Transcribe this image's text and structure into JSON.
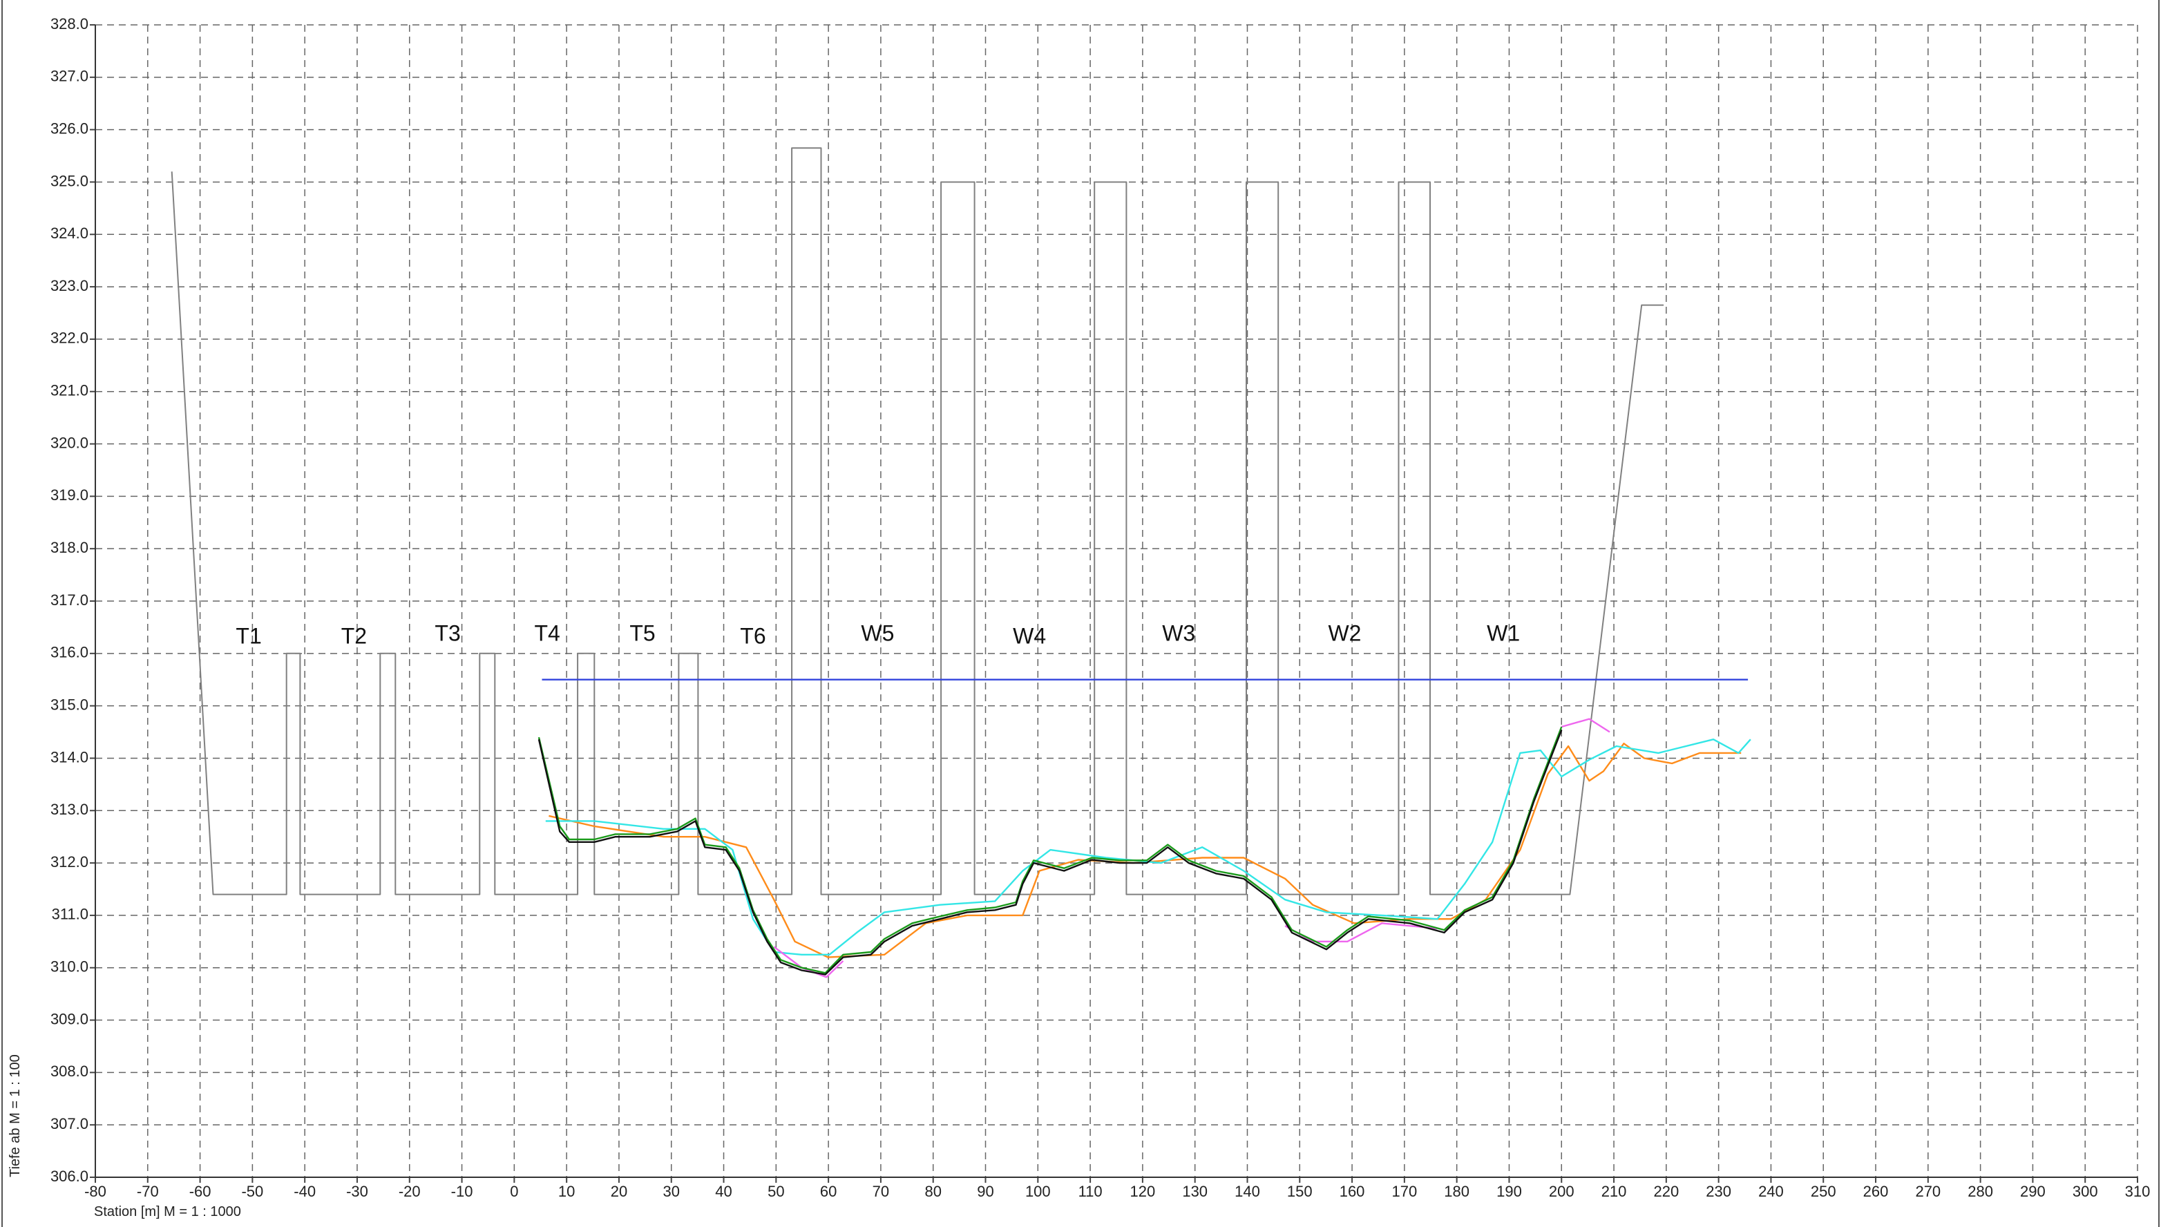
{
  "chart_data": {
    "type": "line",
    "x_label": "Station [m]  M = 1 :  1000",
    "y_label": "Tiefe ab   M = 1 : 100",
    "xlim": [
      -80,
      310
    ],
    "ylim": [
      306,
      328
    ],
    "xticks": [
      -80,
      -70,
      -60,
      -50,
      -40,
      -30,
      -20,
      -10,
      0,
      10,
      20,
      30,
      40,
      50,
      60,
      70,
      80,
      90,
      100,
      110,
      120,
      130,
      140,
      150,
      160,
      170,
      180,
      190,
      200,
      210,
      220,
      230,
      240,
      250,
      260,
      270,
      280,
      290,
      300,
      310
    ],
    "yticks": [
      {
        "value": 306,
        "label": "306.0"
      },
      {
        "value": 307,
        "label": "307.0"
      },
      {
        "value": 308,
        "label": "308.0"
      },
      {
        "value": 309,
        "label": "309.0"
      },
      {
        "value": 310,
        "label": "310.0"
      },
      {
        "value": 311,
        "label": "311.0"
      },
      {
        "value": 312,
        "label": "312.0"
      },
      {
        "value": 313,
        "label": "313.0"
      },
      {
        "value": 314,
        "label": "314.0"
      },
      {
        "value": 315,
        "label": "315.0"
      },
      {
        "value": 316,
        "label": "316.0"
      },
      {
        "value": 317,
        "label": "317.0"
      },
      {
        "value": 318,
        "label": "318.0"
      },
      {
        "value": 319,
        "label": "319.0"
      },
      {
        "value": 320,
        "label": "320.0"
      },
      {
        "value": 321,
        "label": "321.0"
      },
      {
        "value": 322,
        "label": "322.0"
      },
      {
        "value": 323,
        "label": "323.0"
      },
      {
        "value": 324,
        "label": "324.0"
      },
      {
        "value": 325,
        "label": "325.0"
      },
      {
        "value": 326,
        "label": "326.0"
      },
      {
        "value": 327,
        "label": "327.0"
      },
      {
        "value": 328,
        "label": "328.0"
      }
    ],
    "grid": true,
    "series": [
      {
        "color": "#808080",
        "x": [
          -65.4,
          -57.5,
          -43.5,
          -43.5,
          -40.9,
          -40.9,
          -25.6,
          -25.6,
          -22.7,
          -22.7,
          -6.6,
          -6.6,
          -3.7,
          -3.7,
          12.1,
          12.1,
          15.3,
          15.3,
          31.4,
          31.4,
          35.1,
          35.1,
          53,
          53,
          58.6,
          58.6,
          81.5,
          81.5,
          87.9,
          87.9,
          110.8,
          110.8,
          116.9,
          116.9,
          139.8,
          139.8,
          145.9,
          145.9,
          168.9,
          168.9,
          174.9,
          174.9,
          201.6,
          215.3,
          219.5
        ],
        "values": [
          325.2,
          311.4,
          311.4,
          316,
          316,
          311.4,
          311.4,
          316,
          316,
          311.4,
          311.4,
          316,
          316,
          311.4,
          311.4,
          316,
          316,
          311.4,
          311.4,
          316,
          316,
          311.4,
          311.4,
          325.65,
          325.65,
          311.4,
          311.4,
          325,
          325,
          311.4,
          311.4,
          325,
          325,
          311.4,
          311.4,
          325,
          325,
          311.4,
          311.4,
          325,
          325,
          311.4,
          311.4,
          322.65,
          322.65
        ]
      },
      {
        "color": "#3344dd",
        "x": [
          5.3,
          235.6
        ],
        "values": [
          315.5,
          315.5
        ]
      },
      {
        "color": "#ff8c1a",
        "x": [
          6.6,
          15.3,
          28.5,
          36.4,
          44.3,
          49.6,
          53.6,
          59.9,
          70.7,
          78.6,
          86.5,
          97.1,
          100.3,
          107.7,
          118.2,
          131.4,
          139.3,
          147.2,
          152.5,
          160.4,
          171,
          178.9,
          185.5,
          192.1,
          197.4,
          201.3,
          205.3,
          208,
          211.9,
          215.8,
          221.1,
          226.4,
          234.3
        ],
        "values": [
          312.9,
          312.7,
          312.5,
          312.5,
          312.3,
          311.3,
          310.5,
          310.2,
          310.25,
          310.85,
          311,
          311,
          311.85,
          312.06,
          312,
          312.1,
          312.1,
          311.7,
          311.2,
          310.85,
          310.93,
          310.93,
          311.3,
          312.25,
          313.7,
          314.23,
          313.57,
          313.75,
          314.28,
          314,
          313.9,
          314.1,
          314.1
        ]
      },
      {
        "color": "#33e6e6",
        "x": [
          6,
          15.3,
          28.5,
          36.4,
          41.7,
          45.6,
          49.6,
          54.9,
          60.2,
          65.4,
          70.7,
          81.3,
          91.8,
          97.1,
          102.4,
          113,
          123.5,
          131.4,
          139.3,
          147.2,
          155.1,
          165.7,
          176.3,
          181.5,
          186.8,
          192.1,
          196,
          200,
          205.3,
          210.5,
          218.5,
          229,
          233.8,
          236.1
        ],
        "values": [
          312.8,
          312.8,
          312.65,
          312.65,
          312.25,
          310.93,
          310.3,
          310.25,
          310.25,
          310.67,
          311.06,
          311.2,
          311.27,
          311.85,
          312.25,
          312.1,
          312,
          312.3,
          311.85,
          311.3,
          311.06,
          311,
          310.93,
          311.6,
          312.4,
          314.1,
          314.15,
          313.65,
          313.97,
          314.23,
          314.1,
          314.36,
          314.1,
          314.36
        ]
      },
      {
        "color": "#ee66ee",
        "x": [
          49.6,
          54.9,
          59.6,
          62.8,
          null,
          147.2,
          152.5,
          159.1,
          165.7,
          176.3,
          null,
          200,
          205.3,
          209.2
        ],
        "values": [
          310.4,
          310,
          309.82,
          310.13,
          null,
          310.8,
          310.5,
          310.5,
          310.85,
          310.75,
          null,
          314.6,
          314.75,
          314.5
        ]
      },
      {
        "color": "#1a9a1a",
        "x": [
          4.7,
          8.7,
          10.5,
          15.3,
          19.3,
          25.9,
          31.1,
          34.6,
          36.4,
          40.4,
          43,
          45.6,
          48.3,
          50.9,
          54.9,
          59.4,
          62.8,
          68.1,
          70.7,
          76,
          81.3,
          86.5,
          91.8,
          95.8,
          97.1,
          99.2,
          105,
          110.3,
          115.6,
          120.8,
          124.8,
          128.8,
          134,
          139.3,
          144.6,
          148.5,
          155.1,
          159.1,
          163.1,
          171,
          177.6,
          181.5,
          186.8,
          190.8,
          194.7,
          200
        ],
        "values": [
          314.4,
          312.7,
          312.45,
          312.45,
          312.55,
          312.55,
          312.65,
          312.85,
          312.35,
          312.3,
          311.9,
          311.1,
          310.55,
          310.15,
          310,
          309.9,
          310.25,
          310.3,
          310.55,
          310.85,
          310.98,
          311.1,
          311.15,
          311.25,
          311.65,
          312.05,
          311.9,
          312.1,
          312.05,
          312.05,
          312.35,
          312.05,
          311.85,
          311.75,
          311.35,
          310.72,
          310.4,
          310.72,
          310.98,
          310.9,
          310.72,
          311.1,
          311.35,
          312.05,
          313.22,
          314.6
        ]
      },
      {
        "color": "#111111",
        "x": [
          4.7,
          8.7,
          10.5,
          15.3,
          19.3,
          25.9,
          31.1,
          34.6,
          36.4,
          40.4,
          43,
          45.6,
          48.3,
          50.9,
          54.9,
          59.4,
          62.8,
          68.1,
          70.7,
          76,
          81.3,
          86.5,
          91.8,
          95.8,
          97.1,
          99.2,
          105,
          110.3,
          115.6,
          120.8,
          124.8,
          128.8,
          134,
          139.3,
          144.6,
          148.5,
          155.1,
          159.1,
          163.1,
          171,
          177.6,
          181.5,
          186.8,
          190.8,
          194.7,
          200
        ],
        "values": [
          314.36,
          312.6,
          312.4,
          312.4,
          312.5,
          312.5,
          312.6,
          312.8,
          312.3,
          312.25,
          311.85,
          311.06,
          310.5,
          310.1,
          309.95,
          309.87,
          310.2,
          310.25,
          310.5,
          310.8,
          310.93,
          311.06,
          311.1,
          311.2,
          311.6,
          312,
          311.85,
          312.06,
          312,
          312,
          312.3,
          312,
          311.8,
          311.7,
          311.3,
          310.67,
          310.35,
          310.67,
          310.93,
          310.85,
          310.67,
          311.06,
          311.3,
          312,
          313.17,
          314.54
        ]
      }
    ],
    "annotations": [
      {
        "text": "T1",
        "x": -50.7,
        "y": 316.3
      },
      {
        "text": "T2",
        "x": -30.6,
        "y": 316.3
      },
      {
        "text": "T3",
        "x": -12.7,
        "y": 316.35
      },
      {
        "text": "T4",
        "x": 6.3,
        "y": 316.35
      },
      {
        "text": "T5",
        "x": 24.5,
        "y": 316.35
      },
      {
        "text": "T6",
        "x": 45.6,
        "y": 316.3
      },
      {
        "text": "W5",
        "x": 69.4,
        "y": 316.35
      },
      {
        "text": "W4",
        "x": 98.4,
        "y": 316.3
      },
      {
        "text": "W3",
        "x": 126.9,
        "y": 316.35
      },
      {
        "text": "W2",
        "x": 158.6,
        "y": 316.35
      },
      {
        "text": "W1",
        "x": 188.9,
        "y": 316.35
      }
    ]
  }
}
